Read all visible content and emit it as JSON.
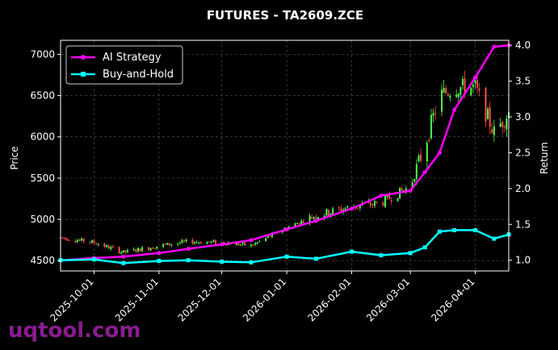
{
  "chart_data": {
    "type": "line",
    "title": "FUTURES - TA2609.ZCE",
    "xlabel": "",
    "ylabel": "Price",
    "ylabel_right": "Return",
    "x_ticks": [
      "2025-10-01",
      "2025-11-01",
      "2025-12-01",
      "2026-01-01",
      "2026-02-01",
      "2026-03-01",
      "2026-04-01"
    ],
    "x_range": [
      "2025-09-15",
      "2026-04-17"
    ],
    "y_ticks": [
      4500,
      5000,
      5500,
      6000,
      6500,
      7000
    ],
    "ylim": [
      4375,
      7170
    ],
    "y2_ticks": [
      "1.0",
      "1.5",
      "2.0",
      "2.5",
      "3.0",
      "3.5",
      "4.0"
    ],
    "y2lim": [
      0.85,
      4.07
    ],
    "grid": true,
    "legend_position": "top-left",
    "colors": {
      "bg": "#000000",
      "up": "#4cff4c",
      "down": "#ff4f4f",
      "ai": "#ff00ff",
      "bh": "#00ffff",
      "grid": "#555555"
    },
    "series": [
      {
        "name": "AI Strategy",
        "axis": "right",
        "color": "#ff00ff",
        "x": [
          "2025-09-15",
          "2025-10-01",
          "2025-10-15",
          "2025-11-01",
          "2025-11-15",
          "2025-12-01",
          "2025-12-15",
          "2026-01-01",
          "2026-01-15",
          "2026-02-01",
          "2026-02-15",
          "2026-03-01",
          "2026-03-08",
          "2026-03-15",
          "2026-03-22",
          "2026-04-01",
          "2026-04-10",
          "2026-04-17"
        ],
        "values": [
          1.0,
          1.03,
          1.05,
          1.1,
          1.16,
          1.22,
          1.28,
          1.43,
          1.55,
          1.72,
          1.9,
          1.97,
          2.23,
          2.5,
          3.1,
          3.55,
          3.98,
          4.0
        ]
      },
      {
        "name": "Buy-and-Hold",
        "axis": "right",
        "color": "#00ffff",
        "x": [
          "2025-09-15",
          "2025-10-01",
          "2025-10-15",
          "2025-11-01",
          "2025-11-15",
          "2025-12-01",
          "2025-12-15",
          "2026-01-01",
          "2026-01-15",
          "2026-02-01",
          "2026-02-15",
          "2026-03-01",
          "2026-03-08",
          "2026-03-15",
          "2026-03-22",
          "2026-04-01",
          "2026-04-10",
          "2026-04-17"
        ],
        "values": [
          1.0,
          1.01,
          0.96,
          0.99,
          1.0,
          0.98,
          0.97,
          1.05,
          1.02,
          1.12,
          1.07,
          1.1,
          1.18,
          1.4,
          1.42,
          1.42,
          1.3,
          1.36
        ]
      },
      {
        "name": "Price",
        "type": "candlestick",
        "axis": "left",
        "x": [
          "2025-09-15",
          "2025-10-01",
          "2025-10-15",
          "2025-11-01",
          "2025-11-15",
          "2025-12-01",
          "2025-12-15",
          "2026-01-01",
          "2026-01-15",
          "2026-02-01",
          "2026-02-15",
          "2026-03-01",
          "2026-03-08",
          "2026-03-15",
          "2026-03-22",
          "2026-04-01",
          "2026-04-10",
          "2026-04-17"
        ],
        "values": [
          4780,
          4720,
          4600,
          4680,
          4730,
          4720,
          4680,
          4900,
          5050,
          5150,
          5200,
          5400,
          5900,
          6500,
          6600,
          6600,
          6050,
          6300
        ]
      }
    ]
  },
  "watermark": "uqtool.com"
}
